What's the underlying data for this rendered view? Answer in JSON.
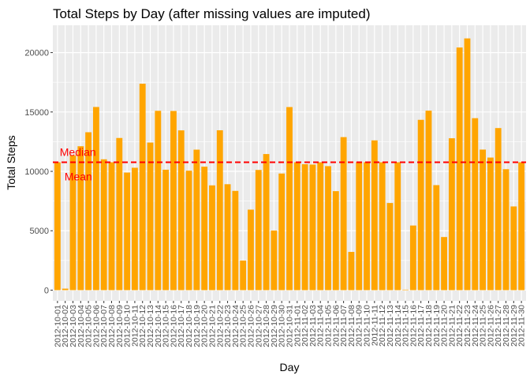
{
  "chart_data": {
    "type": "bar",
    "title": "Total Steps by Day (after missing values are imputed)",
    "xlabel": "Day",
    "ylabel": "Total Steps",
    "ylim": [
      -900,
      22300
    ],
    "yticks": [
      0,
      5000,
      10000,
      15000,
      20000
    ],
    "grid": true,
    "bar_color": "#FFA500",
    "panel_color": "#EBEBEB",
    "categories": [
      "2012-10-01",
      "2012-10-02",
      "2012-10-03",
      "2012-10-04",
      "2012-10-05",
      "2012-10-06",
      "2012-10-07",
      "2012-10-08",
      "2012-10-09",
      "2012-10-10",
      "2012-10-11",
      "2012-10-12",
      "2012-10-13",
      "2012-10-14",
      "2012-10-15",
      "2012-10-16",
      "2012-10-17",
      "2012-10-18",
      "2012-10-19",
      "2012-10-20",
      "2012-10-21",
      "2012-10-22",
      "2012-10-23",
      "2012-10-24",
      "2012-10-25",
      "2012-10-26",
      "2012-10-27",
      "2012-10-28",
      "2012-10-29",
      "2012-10-30",
      "2012-10-31",
      "2012-11-01",
      "2012-11-02",
      "2012-11-03",
      "2012-11-04",
      "2012-11-05",
      "2012-11-06",
      "2012-11-07",
      "2012-11-08",
      "2012-11-09",
      "2012-11-10",
      "2012-11-11",
      "2012-11-12",
      "2012-11-13",
      "2012-11-14",
      "2012-11-15",
      "2012-11-16",
      "2012-11-17",
      "2012-11-18",
      "2012-11-19",
      "2012-11-20",
      "2012-11-21",
      "2012-11-22",
      "2012-11-23",
      "2012-11-24",
      "2012-11-25",
      "2012-11-26",
      "2012-11-27",
      "2012-11-28",
      "2012-11-29",
      "2012-11-30"
    ],
    "values": [
      10766,
      126,
      11352,
      12116,
      13294,
      15420,
      11015,
      10766,
      12811,
      9900,
      10304,
      17382,
      12426,
      15098,
      10139,
      15084,
      13452,
      10056,
      11829,
      10395,
      8821,
      13460,
      8918,
      8355,
      2492,
      6778,
      10119,
      11458,
      5018,
      9819,
      15414,
      10766,
      10600,
      10571,
      10766,
      10439,
      8334,
      12883,
      3219,
      10766,
      10766,
      12608,
      10765,
      7336,
      10766,
      41,
      5441,
      14339,
      15110,
      8841,
      4472,
      12787,
      20427,
      21194,
      14478,
      11834,
      11162,
      13646,
      10183,
      7047,
      10766
    ],
    "reference_lines": [
      {
        "name": "Median",
        "value": 10766,
        "color": "#FF0000",
        "style": "dashed"
      },
      {
        "name": "Mean",
        "value": 10766,
        "color": "#FF0000",
        "style": "dashed"
      }
    ]
  }
}
